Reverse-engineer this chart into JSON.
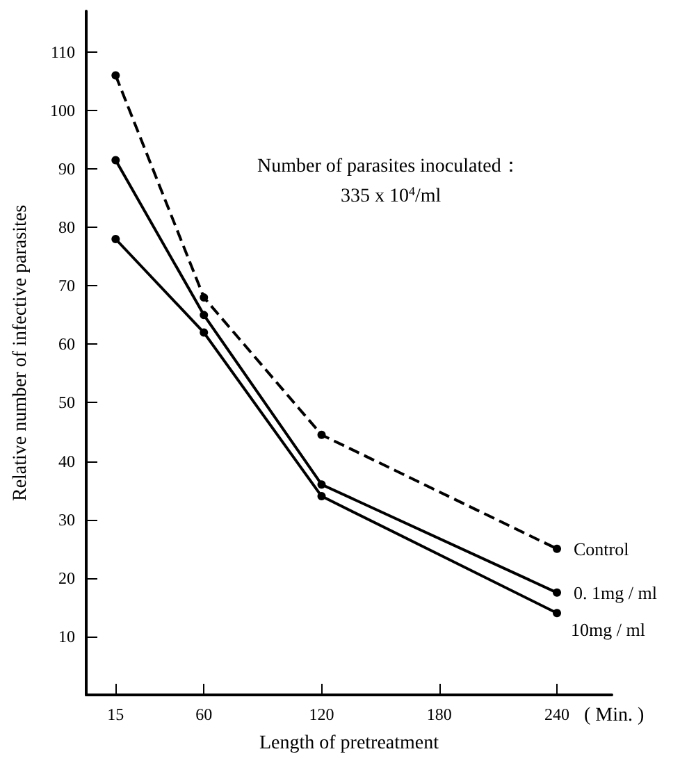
{
  "chart_data": {
    "type": "line",
    "xlabel": "Length of pretreatment",
    "ylabel": "Relative number of infective parasites",
    "x": [
      15,
      60,
      120,
      240
    ],
    "series": [
      {
        "name": "Control",
        "color": "#000000",
        "line_style": "dashed",
        "values": [
          106,
          68,
          44.5,
          25
        ]
      },
      {
        "name": "0. 1mg / ml",
        "color": "#000000",
        "line_style": "solid",
        "values": [
          91.5,
          65,
          36,
          17.5
        ]
      },
      {
        "name": "10mg / ml",
        "color": "#000000",
        "line_style": "solid",
        "values": [
          78,
          62,
          34,
          14
        ]
      }
    ],
    "xlim": [
      0,
      268
    ],
    "xticks": [
      15,
      60,
      120,
      180,
      240
    ],
    "ylim": [
      0,
      117
    ],
    "yticks": [
      10,
      20,
      30,
      40,
      50,
      60,
      70,
      80,
      90,
      100,
      110
    ],
    "annotations": [
      "Number of parasites inoculated：",
      "335 x 10$^{4}$/ml",
      "( Min. )"
    ],
    "marker": "circle",
    "grid": false,
    "legend": false
  }
}
